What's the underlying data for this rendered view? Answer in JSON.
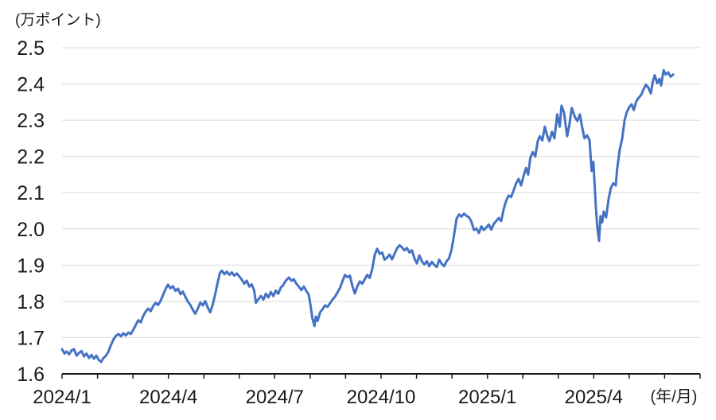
{
  "chart_data": {
    "type": "line",
    "title": "",
    "unit_label": "(万ポイント)",
    "x_suffix_label": "(年/月)",
    "ylim": [
      1.6,
      2.5
    ],
    "y_ticks": [
      1.6,
      1.7,
      1.8,
      1.9,
      2.0,
      2.1,
      2.2,
      2.3,
      2.4,
      2.5
    ],
    "x_months_range": [
      0,
      18
    ],
    "x_tick_labels": [
      {
        "m": 0,
        "label": "2024/1"
      },
      {
        "m": 3,
        "label": "2024/4"
      },
      {
        "m": 6,
        "label": "2024/7"
      },
      {
        "m": 9,
        "label": "2024/10"
      },
      {
        "m": 12,
        "label": "2025/1"
      },
      {
        "m": 15,
        "label": "2025/4"
      }
    ],
    "grid": "horizontal",
    "legend": "none",
    "line_color": "#4472C4",
    "grid_color": "#D9D9D9",
    "axis_color": "#1a1a1a",
    "text_color": "#1a1a1a",
    "series": [
      {
        "points": [
          [
            0,
            1.668
          ],
          [
            0.07,
            1.656
          ],
          [
            0.13,
            1.662
          ],
          [
            0.2,
            1.654
          ],
          [
            0.27,
            1.665
          ],
          [
            0.34,
            1.668
          ],
          [
            0.41,
            1.65
          ],
          [
            0.48,
            1.658
          ],
          [
            0.55,
            1.663
          ],
          [
            0.62,
            1.648
          ],
          [
            0.69,
            1.656
          ],
          [
            0.76,
            1.644
          ],
          [
            0.83,
            1.652
          ],
          [
            0.9,
            1.642
          ],
          [
            0.97,
            1.65
          ],
          [
            1.04,
            1.638
          ],
          [
            1.1,
            1.633
          ],
          [
            1.17,
            1.644
          ],
          [
            1.24,
            1.65
          ],
          [
            1.31,
            1.662
          ],
          [
            1.38,
            1.68
          ],
          [
            1.45,
            1.695
          ],
          [
            1.52,
            1.705
          ],
          [
            1.59,
            1.71
          ],
          [
            1.66,
            1.704
          ],
          [
            1.73,
            1.712
          ],
          [
            1.8,
            1.706
          ],
          [
            1.87,
            1.714
          ],
          [
            1.94,
            1.71
          ],
          [
            2.01,
            1.722
          ],
          [
            2.08,
            1.735
          ],
          [
            2.15,
            1.748
          ],
          [
            2.22,
            1.742
          ],
          [
            2.29,
            1.76
          ],
          [
            2.36,
            1.772
          ],
          [
            2.43,
            1.78
          ],
          [
            2.5,
            1.773
          ],
          [
            2.57,
            1.787
          ],
          [
            2.64,
            1.796
          ],
          [
            2.71,
            1.79
          ],
          [
            2.78,
            1.802
          ],
          [
            2.85,
            1.818
          ],
          [
            2.92,
            1.834
          ],
          [
            2.99,
            1.846
          ],
          [
            3.06,
            1.836
          ],
          [
            3.13,
            1.842
          ],
          [
            3.2,
            1.829
          ],
          [
            3.27,
            1.835
          ],
          [
            3.34,
            1.82
          ],
          [
            3.41,
            1.827
          ],
          [
            3.48,
            1.812
          ],
          [
            3.55,
            1.799
          ],
          [
            3.62,
            1.79
          ],
          [
            3.69,
            1.777
          ],
          [
            3.76,
            1.766
          ],
          [
            3.83,
            1.78
          ],
          [
            3.9,
            1.797
          ],
          [
            3.97,
            1.789
          ],
          [
            4.04,
            1.801
          ],
          [
            4.11,
            1.783
          ],
          [
            4.18,
            1.77
          ],
          [
            4.25,
            1.791
          ],
          [
            4.32,
            1.82
          ],
          [
            4.39,
            1.852
          ],
          [
            4.46,
            1.88
          ],
          [
            4.51,
            1.885
          ],
          [
            4.58,
            1.875
          ],
          [
            4.65,
            1.882
          ],
          [
            4.72,
            1.873
          ],
          [
            4.79,
            1.88
          ],
          [
            4.86,
            1.871
          ],
          [
            4.93,
            1.877
          ],
          [
            5,
            1.869
          ],
          [
            5.07,
            1.86
          ],
          [
            5.14,
            1.849
          ],
          [
            5.21,
            1.857
          ],
          [
            5.28,
            1.841
          ],
          [
            5.35,
            1.847
          ],
          [
            5.42,
            1.83
          ],
          [
            5.47,
            1.796
          ],
          [
            5.54,
            1.806
          ],
          [
            5.61,
            1.815
          ],
          [
            5.68,
            1.805
          ],
          [
            5.75,
            1.821
          ],
          [
            5.82,
            1.811
          ],
          [
            5.89,
            1.826
          ],
          [
            5.96,
            1.815
          ],
          [
            6.03,
            1.83
          ],
          [
            6.1,
            1.821
          ],
          [
            6.17,
            1.838
          ],
          [
            6.24,
            1.845
          ],
          [
            6.31,
            1.857
          ],
          [
            6.4,
            1.866
          ],
          [
            6.47,
            1.857
          ],
          [
            6.54,
            1.861
          ],
          [
            6.61,
            1.849
          ],
          [
            6.68,
            1.841
          ],
          [
            6.75,
            1.831
          ],
          [
            6.82,
            1.841
          ],
          [
            6.89,
            1.829
          ],
          [
            6.96,
            1.818
          ],
          [
            7.01,
            1.79
          ],
          [
            7.06,
            1.754
          ],
          [
            7.12,
            1.732
          ],
          [
            7.16,
            1.758
          ],
          [
            7.21,
            1.746
          ],
          [
            7.28,
            1.77
          ],
          [
            7.35,
            1.779
          ],
          [
            7.42,
            1.789
          ],
          [
            7.49,
            1.785
          ],
          [
            7.56,
            1.795
          ],
          [
            7.63,
            1.805
          ],
          [
            7.7,
            1.813
          ],
          [
            7.77,
            1.825
          ],
          [
            7.84,
            1.837
          ],
          [
            7.91,
            1.855
          ],
          [
            7.98,
            1.873
          ],
          [
            8.05,
            1.867
          ],
          [
            8.12,
            1.871
          ],
          [
            8.19,
            1.843
          ],
          [
            8.26,
            1.822
          ],
          [
            8.33,
            1.841
          ],
          [
            8.4,
            1.855
          ],
          [
            8.47,
            1.849
          ],
          [
            8.54,
            1.861
          ],
          [
            8.61,
            1.873
          ],
          [
            8.68,
            1.865
          ],
          [
            8.75,
            1.889
          ],
          [
            8.82,
            1.928
          ],
          [
            8.89,
            1.945
          ],
          [
            8.96,
            1.931
          ],
          [
            9.03,
            1.935
          ],
          [
            9.1,
            1.915
          ],
          [
            9.17,
            1.921
          ],
          [
            9.24,
            1.929
          ],
          [
            9.31,
            1.916
          ],
          [
            9.38,
            1.931
          ],
          [
            9.45,
            1.946
          ],
          [
            9.52,
            1.955
          ],
          [
            9.59,
            1.949
          ],
          [
            9.66,
            1.941
          ],
          [
            9.73,
            1.947
          ],
          [
            9.8,
            1.935
          ],
          [
            9.87,
            1.941
          ],
          [
            9.94,
            1.919
          ],
          [
            10.01,
            1.905
          ],
          [
            10.08,
            1.927
          ],
          [
            10.15,
            1.911
          ],
          [
            10.22,
            1.902
          ],
          [
            10.29,
            1.911
          ],
          [
            10.36,
            1.897
          ],
          [
            10.43,
            1.909
          ],
          [
            10.5,
            1.901
          ],
          [
            10.57,
            1.895
          ],
          [
            10.64,
            1.915
          ],
          [
            10.71,
            1.904
          ],
          [
            10.78,
            1.897
          ],
          [
            10.85,
            1.911
          ],
          [
            10.92,
            1.919
          ],
          [
            10.99,
            1.944
          ],
          [
            11.06,
            1.984
          ],
          [
            11.13,
            2.028
          ],
          [
            11.2,
            2.04
          ],
          [
            11.27,
            2.034
          ],
          [
            11.34,
            2.042
          ],
          [
            11.41,
            2.036
          ],
          [
            11.48,
            2.032
          ],
          [
            11.55,
            2.02
          ],
          [
            11.62,
            1.997
          ],
          [
            11.69,
            2.001
          ],
          [
            11.76,
            1.989
          ],
          [
            11.83,
            2.007
          ],
          [
            11.9,
            1.997
          ],
          [
            11.97,
            2.004
          ],
          [
            12.04,
            2.012
          ],
          [
            12.11,
            1.998
          ],
          [
            12.18,
            2.014
          ],
          [
            12.25,
            2.022
          ],
          [
            12.32,
            2.03
          ],
          [
            12.39,
            2.022
          ],
          [
            12.46,
            2.055
          ],
          [
            12.53,
            2.078
          ],
          [
            12.6,
            2.092
          ],
          [
            12.67,
            2.088
          ],
          [
            12.74,
            2.106
          ],
          [
            12.81,
            2.126
          ],
          [
            12.88,
            2.138
          ],
          [
            12.95,
            2.12
          ],
          [
            13.02,
            2.146
          ],
          [
            13.09,
            2.168
          ],
          [
            13.15,
            2.15
          ],
          [
            13.21,
            2.196
          ],
          [
            13.28,
            2.212
          ],
          [
            13.35,
            2.2
          ],
          [
            13.42,
            2.242
          ],
          [
            13.48,
            2.256
          ],
          [
            13.55,
            2.244
          ],
          [
            13.62,
            2.282
          ],
          [
            13.69,
            2.256
          ],
          [
            13.75,
            2.242
          ],
          [
            13.82,
            2.268
          ],
          [
            13.89,
            2.25
          ],
          [
            13.97,
            2.316
          ],
          [
            14.04,
            2.282
          ],
          [
            14.09,
            2.34
          ],
          [
            14.16,
            2.322
          ],
          [
            14.25,
            2.256
          ],
          [
            14.31,
            2.286
          ],
          [
            14.38,
            2.334
          ],
          [
            14.47,
            2.308
          ],
          [
            14.54,
            2.298
          ],
          [
            14.61,
            2.316
          ],
          [
            14.67,
            2.282
          ],
          [
            14.74,
            2.25
          ],
          [
            14.81,
            2.258
          ],
          [
            14.88,
            2.245
          ],
          [
            14.94,
            2.16
          ],
          [
            14.99,
            2.185
          ],
          [
            15.06,
            2.06
          ],
          [
            15.1,
            2.005
          ],
          [
            15.15,
            1.967
          ],
          [
            15.19,
            2.035
          ],
          [
            15.24,
            2.018
          ],
          [
            15.28,
            2.048
          ],
          [
            15.35,
            2.032
          ],
          [
            15.42,
            2.082
          ],
          [
            15.48,
            2.112
          ],
          [
            15.55,
            2.126
          ],
          [
            15.62,
            2.12
          ],
          [
            15.66,
            2.165
          ],
          [
            15.73,
            2.218
          ],
          [
            15.8,
            2.248
          ],
          [
            15.87,
            2.3
          ],
          [
            15.93,
            2.322
          ],
          [
            16,
            2.336
          ],
          [
            16.07,
            2.344
          ],
          [
            16.13,
            2.328
          ],
          [
            16.2,
            2.352
          ],
          [
            16.27,
            2.362
          ],
          [
            16.34,
            2.37
          ],
          [
            16.4,
            2.384
          ],
          [
            16.47,
            2.398
          ],
          [
            16.54,
            2.39
          ],
          [
            16.61,
            2.374
          ],
          [
            16.67,
            2.408
          ],
          [
            16.72,
            2.424
          ],
          [
            16.79,
            2.402
          ],
          [
            16.85,
            2.414
          ],
          [
            16.9,
            2.396
          ],
          [
            16.97,
            2.438
          ],
          [
            17.03,
            2.426
          ],
          [
            17.1,
            2.432
          ],
          [
            17.17,
            2.42
          ],
          [
            17.24,
            2.426
          ]
        ]
      }
    ]
  }
}
